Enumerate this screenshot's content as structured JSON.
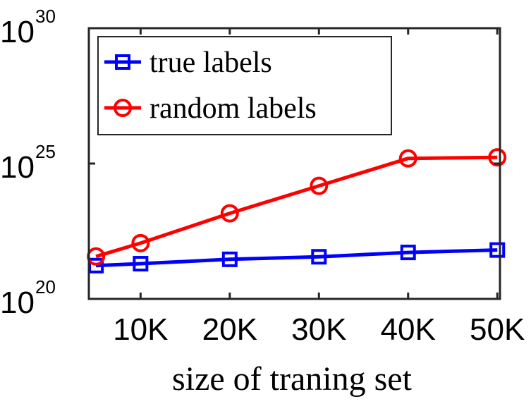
{
  "chart_data": {
    "type": "line",
    "title": "",
    "xlabel": "size of traning set",
    "ylabel": "",
    "x": [
      5000,
      10000,
      20000,
      30000,
      40000,
      50000
    ],
    "xlim": [
      4200,
      50300
    ],
    "x_ticks": [
      10000,
      20000,
      30000,
      40000,
      50000
    ],
    "x_tick_labels": [
      "10K",
      "20K",
      "30K",
      "40K",
      "50K"
    ],
    "y_scale": "log",
    "ylim": [
      1e+20,
      1e+30
    ],
    "y_ticks": [
      {
        "base": "10",
        "exp": "20",
        "value": 1e+20
      },
      {
        "base": "10",
        "exp": "25",
        "value": 1e+25
      },
      {
        "base": "10",
        "exp": "30",
        "value": 1e+30
      }
    ],
    "grid": false,
    "legend_position": "top-left",
    "series": [
      {
        "name": "true labels",
        "color": "#0000ff",
        "marker": "square",
        "values": [
          1.7e+21,
          2e+21,
          2.9e+21,
          3.6e+21,
          5.2e+21,
          6.4e+21
        ]
      },
      {
        "name": "random labels",
        "color": "#ff0000",
        "marker": "circle",
        "values": [
          3.7e+21,
          1.15e+22,
          1.45e+23,
          1.5e+24,
          1.55e+25,
          1.7e+25
        ]
      }
    ]
  }
}
